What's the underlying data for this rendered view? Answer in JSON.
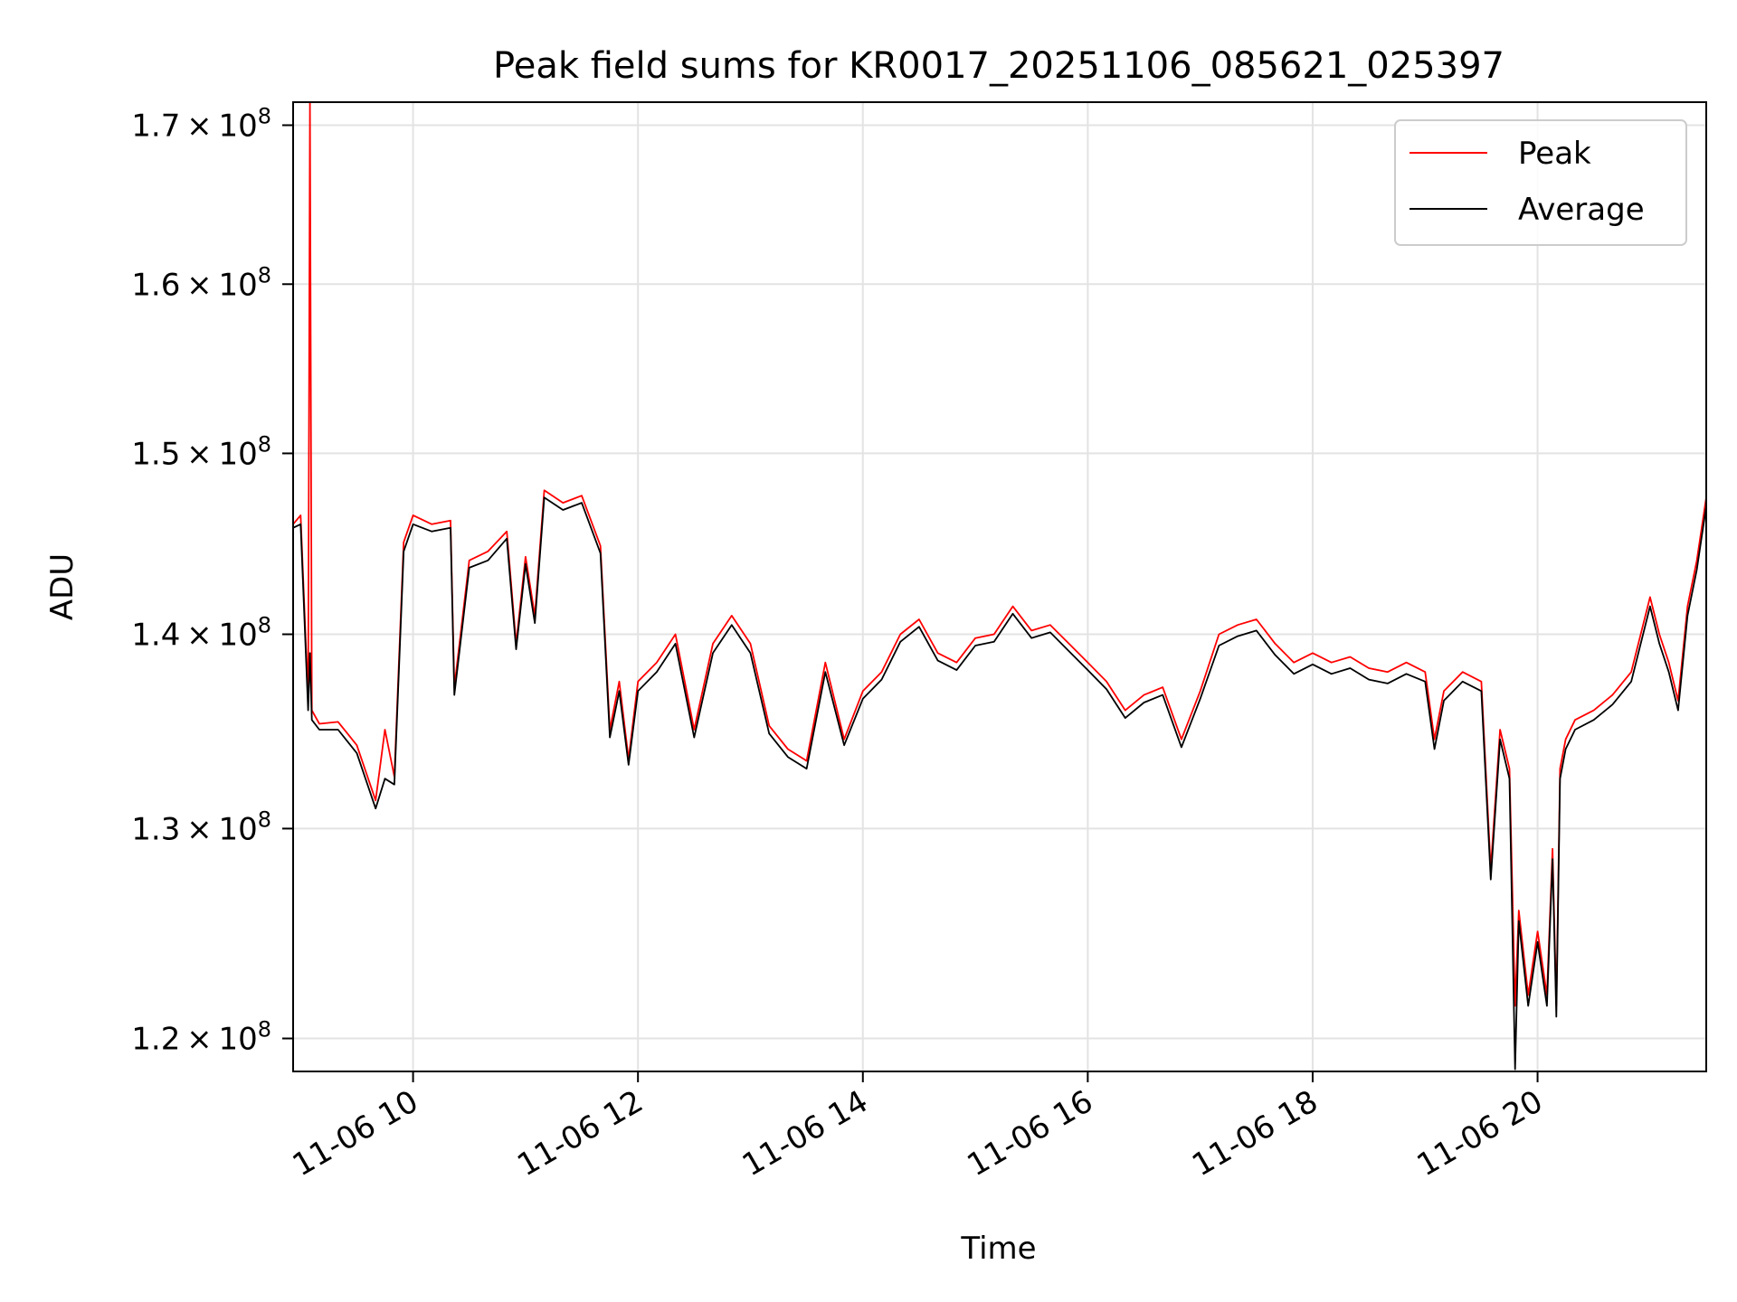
{
  "chart_data": {
    "type": "line",
    "title": "Peak field sums for KR0017_20251106_085621_025397",
    "xlabel": "Time",
    "ylabel": "ADU",
    "y_scale": "log",
    "xlim": [
      "2025-11-06 08:56",
      "2025-11-06 21:30"
    ],
    "ylim": [
      118500000,
      171500000
    ],
    "x_ticks": [
      {
        "value": "2025-11-06 10:00",
        "label": "11-06 10"
      },
      {
        "value": "2025-11-06 12:00",
        "label": "11-06 12"
      },
      {
        "value": "2025-11-06 14:00",
        "label": "11-06 14"
      },
      {
        "value": "2025-11-06 16:00",
        "label": "11-06 16"
      },
      {
        "value": "2025-11-06 18:00",
        "label": "11-06 18"
      },
      {
        "value": "2025-11-06 20:00",
        "label": "11-06 20"
      }
    ],
    "y_ticks": [
      {
        "value": 120000000,
        "mantissa": "1.2",
        "exp": "8"
      },
      {
        "value": 130000000,
        "mantissa": "1.3",
        "exp": "8"
      },
      {
        "value": 140000000,
        "mantissa": "1.4",
        "exp": "8"
      },
      {
        "value": 150000000,
        "mantissa": "1.5",
        "exp": "8"
      },
      {
        "value": 160000000,
        "mantissa": "1.6",
        "exp": "8"
      },
      {
        "value": 170000000,
        "mantissa": "1.7",
        "exp": "8"
      }
    ],
    "grid": true,
    "legend_position": "top-right",
    "series": [
      {
        "name": "Peak",
        "color": "#ff0000",
        "points": [
          [
            "2025-11-06 08:56",
            146.0
          ],
          [
            "2025-11-06 09:00",
            146.5
          ],
          [
            "2025-11-06 09:04",
            136.5
          ],
          [
            "2025-11-06 09:05",
            171.5
          ],
          [
            "2025-11-06 09:06",
            136.0
          ],
          [
            "2025-11-06 09:10",
            135.3
          ],
          [
            "2025-11-06 09:20",
            135.4
          ],
          [
            "2025-11-06 09:30",
            134.2
          ],
          [
            "2025-11-06 09:40",
            131.4
          ],
          [
            "2025-11-06 09:45",
            135.0
          ],
          [
            "2025-11-06 09:50",
            132.6
          ],
          [
            "2025-11-06 09:55",
            145.0
          ],
          [
            "2025-11-06 10:00",
            146.5
          ],
          [
            "2025-11-06 10:10",
            146.0
          ],
          [
            "2025-11-06 10:20",
            146.2
          ],
          [
            "2025-11-06 10:22",
            137.2
          ],
          [
            "2025-11-06 10:30",
            144.0
          ],
          [
            "2025-11-06 10:40",
            144.5
          ],
          [
            "2025-11-06 10:50",
            145.6
          ],
          [
            "2025-11-06 10:55",
            139.5
          ],
          [
            "2025-11-06 11:00",
            144.2
          ],
          [
            "2025-11-06 11:05",
            141.0
          ],
          [
            "2025-11-06 11:10",
            147.9
          ],
          [
            "2025-11-06 11:20",
            147.2
          ],
          [
            "2025-11-06 11:30",
            147.6
          ],
          [
            "2025-11-06 11:40",
            144.8
          ],
          [
            "2025-11-06 11:45",
            135.0
          ],
          [
            "2025-11-06 11:50",
            137.5
          ],
          [
            "2025-11-06 11:55",
            133.5
          ],
          [
            "2025-11-06 12:00",
            137.5
          ],
          [
            "2025-11-06 12:10",
            138.5
          ],
          [
            "2025-11-06 12:20",
            140.0
          ],
          [
            "2025-11-06 12:30",
            135.0
          ],
          [
            "2025-11-06 12:40",
            139.5
          ],
          [
            "2025-11-06 12:50",
            141.0
          ],
          [
            "2025-11-06 13:00",
            139.5
          ],
          [
            "2025-11-06 13:10",
            135.2
          ],
          [
            "2025-11-06 13:20",
            134.0
          ],
          [
            "2025-11-06 13:30",
            133.4
          ],
          [
            "2025-11-06 13:40",
            138.5
          ],
          [
            "2025-11-06 13:50",
            134.5
          ],
          [
            "2025-11-06 14:00",
            137.0
          ],
          [
            "2025-11-06 14:10",
            138.0
          ],
          [
            "2025-11-06 14:20",
            140.0
          ],
          [
            "2025-11-06 14:30",
            140.8
          ],
          [
            "2025-11-06 14:40",
            139.0
          ],
          [
            "2025-11-06 14:50",
            138.5
          ],
          [
            "2025-11-06 15:00",
            139.8
          ],
          [
            "2025-11-06 15:10",
            140.0
          ],
          [
            "2025-11-06 15:20",
            141.5
          ],
          [
            "2025-11-06 15:30",
            140.2
          ],
          [
            "2025-11-06 15:40",
            140.5
          ],
          [
            "2025-11-06 15:50",
            139.5
          ],
          [
            "2025-11-06 16:00",
            138.5
          ],
          [
            "2025-11-06 16:10",
            137.5
          ],
          [
            "2025-11-06 16:20",
            136.0
          ],
          [
            "2025-11-06 16:30",
            136.8
          ],
          [
            "2025-11-06 16:40",
            137.2
          ],
          [
            "2025-11-06 16:50",
            134.5
          ],
          [
            "2025-11-06 17:00",
            137.0
          ],
          [
            "2025-11-06 17:10",
            140.0
          ],
          [
            "2025-11-06 17:20",
            140.5
          ],
          [
            "2025-11-06 17:30",
            140.8
          ],
          [
            "2025-11-06 17:40",
            139.5
          ],
          [
            "2025-11-06 17:50",
            138.5
          ],
          [
            "2025-11-06 18:00",
            139.0
          ],
          [
            "2025-11-06 18:10",
            138.5
          ],
          [
            "2025-11-06 18:20",
            138.8
          ],
          [
            "2025-11-06 18:30",
            138.2
          ],
          [
            "2025-11-06 18:40",
            138.0
          ],
          [
            "2025-11-06 18:50",
            138.5
          ],
          [
            "2025-11-06 19:00",
            138.0
          ],
          [
            "2025-11-06 19:05",
            134.5
          ],
          [
            "2025-11-06 19:10",
            137.0
          ],
          [
            "2025-11-06 19:20",
            138.0
          ],
          [
            "2025-11-06 19:30",
            137.5
          ],
          [
            "2025-11-06 19:35",
            128.0
          ],
          [
            "2025-11-06 19:40",
            135.0
          ],
          [
            "2025-11-06 19:45",
            133.0
          ],
          [
            "2025-11-06 19:48",
            121.5
          ],
          [
            "2025-11-06 19:50",
            126.0
          ],
          [
            "2025-11-06 19:55",
            122.0
          ],
          [
            "2025-11-06 20:00",
            125.0
          ],
          [
            "2025-11-06 20:05",
            122.0
          ],
          [
            "2025-11-06 20:08",
            129.0
          ],
          [
            "2025-11-06 20:10",
            121.5
          ],
          [
            "2025-11-06 20:12",
            133.0
          ],
          [
            "2025-11-06 20:15",
            134.5
          ],
          [
            "2025-11-06 20:20",
            135.5
          ],
          [
            "2025-11-06 20:30",
            136.0
          ],
          [
            "2025-11-06 20:40",
            136.8
          ],
          [
            "2025-11-06 20:50",
            138.0
          ],
          [
            "2025-11-06 21:00",
            142.0
          ],
          [
            "2025-11-06 21:05",
            140.0
          ],
          [
            "2025-11-06 21:10",
            138.5
          ],
          [
            "2025-11-06 21:15",
            136.5
          ],
          [
            "2025-11-06 21:20",
            141.5
          ],
          [
            "2025-11-06 21:25",
            144.0
          ],
          [
            "2025-11-06 21:30",
            147.5
          ]
        ]
      },
      {
        "name": "Average",
        "color": "#000000",
        "points": [
          [
            "2025-11-06 08:56",
            145.8
          ],
          [
            "2025-11-06 09:00",
            146.0
          ],
          [
            "2025-11-06 09:04",
            136.0
          ],
          [
            "2025-11-06 09:05",
            139.0
          ],
          [
            "2025-11-06 09:06",
            135.5
          ],
          [
            "2025-11-06 09:10",
            135.0
          ],
          [
            "2025-11-06 09:20",
            135.0
          ],
          [
            "2025-11-06 09:30",
            133.8
          ],
          [
            "2025-11-06 09:40",
            131.0
          ],
          [
            "2025-11-06 09:45",
            132.5
          ],
          [
            "2025-11-06 09:50",
            132.2
          ],
          [
            "2025-11-06 09:55",
            144.5
          ],
          [
            "2025-11-06 10:00",
            146.0
          ],
          [
            "2025-11-06 10:10",
            145.6
          ],
          [
            "2025-11-06 10:20",
            145.8
          ],
          [
            "2025-11-06 10:22",
            136.8
          ],
          [
            "2025-11-06 10:30",
            143.6
          ],
          [
            "2025-11-06 10:40",
            144.0
          ],
          [
            "2025-11-06 10:50",
            145.2
          ],
          [
            "2025-11-06 10:55",
            139.2
          ],
          [
            "2025-11-06 11:00",
            143.8
          ],
          [
            "2025-11-06 11:05",
            140.6
          ],
          [
            "2025-11-06 11:10",
            147.5
          ],
          [
            "2025-11-06 11:20",
            146.8
          ],
          [
            "2025-11-06 11:30",
            147.2
          ],
          [
            "2025-11-06 11:40",
            144.4
          ],
          [
            "2025-11-06 11:45",
            134.6
          ],
          [
            "2025-11-06 11:50",
            137.0
          ],
          [
            "2025-11-06 11:55",
            133.2
          ],
          [
            "2025-11-06 12:00",
            137.0
          ],
          [
            "2025-11-06 12:10",
            138.0
          ],
          [
            "2025-11-06 12:20",
            139.5
          ],
          [
            "2025-11-06 12:30",
            134.6
          ],
          [
            "2025-11-06 12:40",
            139.0
          ],
          [
            "2025-11-06 12:50",
            140.5
          ],
          [
            "2025-11-06 13:00",
            139.0
          ],
          [
            "2025-11-06 13:10",
            134.8
          ],
          [
            "2025-11-06 13:20",
            133.6
          ],
          [
            "2025-11-06 13:30",
            133.0
          ],
          [
            "2025-11-06 13:40",
            138.0
          ],
          [
            "2025-11-06 13:50",
            134.2
          ],
          [
            "2025-11-06 14:00",
            136.6
          ],
          [
            "2025-11-06 14:10",
            137.6
          ],
          [
            "2025-11-06 14:20",
            139.6
          ],
          [
            "2025-11-06 14:30",
            140.4
          ],
          [
            "2025-11-06 14:40",
            138.6
          ],
          [
            "2025-11-06 14:50",
            138.1
          ],
          [
            "2025-11-06 15:00",
            139.4
          ],
          [
            "2025-11-06 15:10",
            139.6
          ],
          [
            "2025-11-06 15:20",
            141.1
          ],
          [
            "2025-11-06 15:30",
            139.8
          ],
          [
            "2025-11-06 15:40",
            140.1
          ],
          [
            "2025-11-06 15:50",
            139.1
          ],
          [
            "2025-11-06 16:00",
            138.1
          ],
          [
            "2025-11-06 16:10",
            137.1
          ],
          [
            "2025-11-06 16:20",
            135.6
          ],
          [
            "2025-11-06 16:30",
            136.4
          ],
          [
            "2025-11-06 16:40",
            136.8
          ],
          [
            "2025-11-06 16:50",
            134.1
          ],
          [
            "2025-11-06 17:00",
            136.6
          ],
          [
            "2025-11-06 17:10",
            139.4
          ],
          [
            "2025-11-06 17:20",
            139.9
          ],
          [
            "2025-11-06 17:30",
            140.2
          ],
          [
            "2025-11-06 17:40",
            138.9
          ],
          [
            "2025-11-06 17:50",
            137.9
          ],
          [
            "2025-11-06 18:00",
            138.4
          ],
          [
            "2025-11-06 18:10",
            137.9
          ],
          [
            "2025-11-06 18:20",
            138.2
          ],
          [
            "2025-11-06 18:30",
            137.6
          ],
          [
            "2025-11-06 18:40",
            137.4
          ],
          [
            "2025-11-06 18:50",
            137.9
          ],
          [
            "2025-11-06 19:00",
            137.5
          ],
          [
            "2025-11-06 19:05",
            134.0
          ],
          [
            "2025-11-06 19:10",
            136.5
          ],
          [
            "2025-11-06 19:20",
            137.5
          ],
          [
            "2025-11-06 19:30",
            137.0
          ],
          [
            "2025-11-06 19:35",
            127.5
          ],
          [
            "2025-11-06 19:40",
            134.5
          ],
          [
            "2025-11-06 19:45",
            132.5
          ],
          [
            "2025-11-06 19:48",
            118.6
          ],
          [
            "2025-11-06 19:50",
            125.5
          ],
          [
            "2025-11-06 19:55",
            121.5
          ],
          [
            "2025-11-06 20:00",
            124.5
          ],
          [
            "2025-11-06 20:05",
            121.5
          ],
          [
            "2025-11-06 20:08",
            128.5
          ],
          [
            "2025-11-06 20:10",
            121.0
          ],
          [
            "2025-11-06 20:12",
            132.5
          ],
          [
            "2025-11-06 20:15",
            134.0
          ],
          [
            "2025-11-06 20:20",
            135.0
          ],
          [
            "2025-11-06 20:30",
            135.5
          ],
          [
            "2025-11-06 20:40",
            136.3
          ],
          [
            "2025-11-06 20:50",
            137.5
          ],
          [
            "2025-11-06 21:00",
            141.5
          ],
          [
            "2025-11-06 21:05",
            139.5
          ],
          [
            "2025-11-06 21:10",
            138.0
          ],
          [
            "2025-11-06 21:15",
            136.0
          ],
          [
            "2025-11-06 21:20",
            141.0
          ],
          [
            "2025-11-06 21:25",
            143.5
          ],
          [
            "2025-11-06 21:30",
            147.0
          ]
        ]
      }
    ]
  }
}
